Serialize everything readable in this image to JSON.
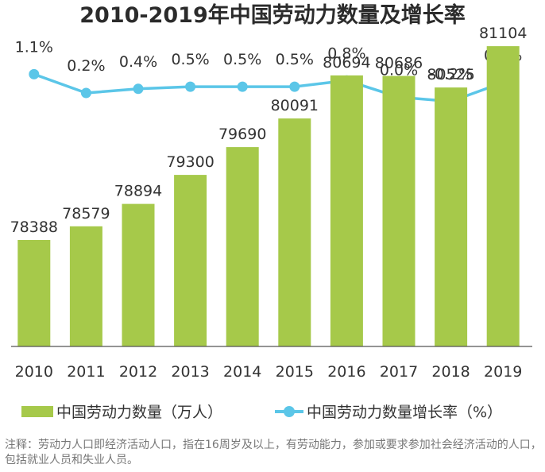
{
  "chart_data": {
    "type": "bar",
    "title": "2010-2019年中国劳动力数量及增长率",
    "categories": [
      "2010",
      "2011",
      "2012",
      "2013",
      "2014",
      "2015",
      "2016",
      "2017",
      "2018",
      "2019"
    ],
    "series": [
      {
        "name": "中国劳动力数量（万人）",
        "type": "bar",
        "color": "#a6c94a",
        "values": [
          78388,
          78579,
          78894,
          79300,
          79690,
          80091,
          80694,
          80686,
          80525,
          81104
        ]
      },
      {
        "name": "中国劳动力数量增长率（%）",
        "type": "line",
        "color": "#5bc6e8",
        "values": [
          1.1,
          0.2,
          0.4,
          0.5,
          0.5,
          0.5,
          0.8,
          0.0,
          -0.2,
          0.7
        ],
        "labels": [
          "1.1%",
          "0.2%",
          "0.4%",
          "0.5%",
          "0.5%",
          "0.5%",
          "0.8%",
          "0.0%",
          "-0.2%",
          "0.7%"
        ]
      }
    ],
    "legend_position": "bottom",
    "grid": false
  },
  "note": "注释：劳动力人口即经济活动人口，指在16周岁及以上，有劳动能力，参加或要求参加社会经济活动的人口，包括就业人员和失业人员。"
}
